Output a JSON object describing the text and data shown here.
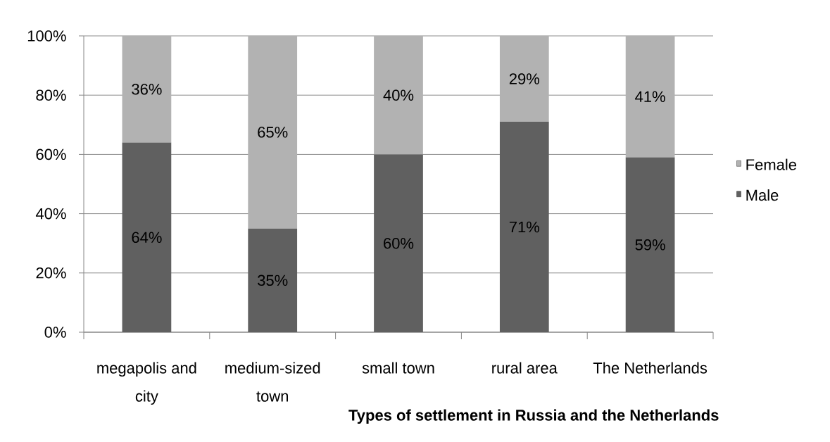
{
  "chart_data": {
    "type": "bar",
    "stacked": true,
    "categories": [
      "megapolis and city",
      "medium-sized town",
      "small town",
      "rural area",
      "The Netherlands"
    ],
    "series": [
      {
        "name": "Male",
        "color": "#606060",
        "values": [
          64,
          35,
          60,
          71,
          59
        ],
        "value_labels": [
          "64%",
          "35%",
          "60%",
          "71%",
          "59%"
        ]
      },
      {
        "name": "Female",
        "color": "#b2b2b2",
        "values": [
          36,
          65,
          40,
          29,
          41
        ],
        "value_labels": [
          "36%",
          "65%",
          "40%",
          "29%",
          "41%"
        ]
      }
    ],
    "xlabel": "Types of settlement in Russia and the Netherlands",
    "ylim": [
      0,
      100
    ],
    "yticks": [
      {
        "value": 0,
        "label": "0%"
      },
      {
        "value": 20,
        "label": "20%"
      },
      {
        "value": 40,
        "label": "40%"
      },
      {
        "value": 60,
        "label": "60%"
      },
      {
        "value": 80,
        "label": "80%"
      },
      {
        "value": 100,
        "label": "100%"
      }
    ],
    "grid": "y",
    "legend": "right"
  }
}
